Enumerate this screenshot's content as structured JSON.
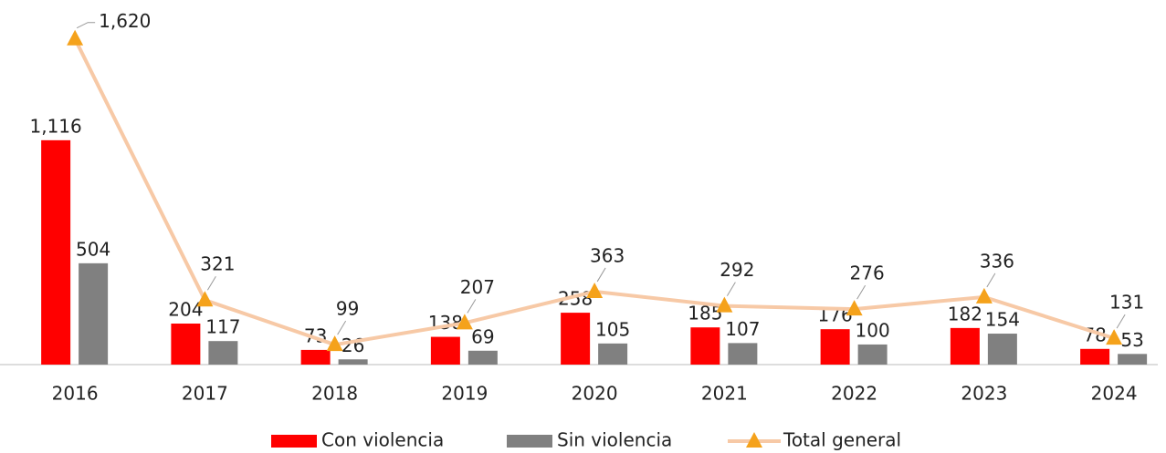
{
  "chart_data": {
    "type": "bar-line",
    "categories": [
      "2016",
      "2017",
      "2018",
      "2019",
      "2020",
      "2021",
      "2022",
      "2023",
      "2024"
    ],
    "series": [
      {
        "name": "Con violencia",
        "type": "bar",
        "color": "#ff0000",
        "values": [
          1116,
          204,
          73,
          138,
          258,
          185,
          176,
          182,
          78
        ],
        "value_labels": [
          "1,116",
          "204",
          "73",
          "138",
          "258",
          "185",
          "176",
          "182",
          "78"
        ]
      },
      {
        "name": "Sin violencia",
        "type": "bar",
        "color": "#808080",
        "values": [
          504,
          117,
          26,
          69,
          105,
          107,
          100,
          154,
          53
        ]
      },
      {
        "name": "Total general",
        "type": "line",
        "color": "#f7c9a6",
        "marker_color": "#f5a21b",
        "values": [
          1620,
          321,
          99,
          207,
          363,
          292,
          276,
          336,
          131
        ],
        "value_labels": [
          "1,620",
          "321",
          "99",
          "207",
          "363",
          "292",
          "276",
          "336",
          "131"
        ]
      }
    ],
    "ylim": [
      0,
      1800
    ]
  }
}
